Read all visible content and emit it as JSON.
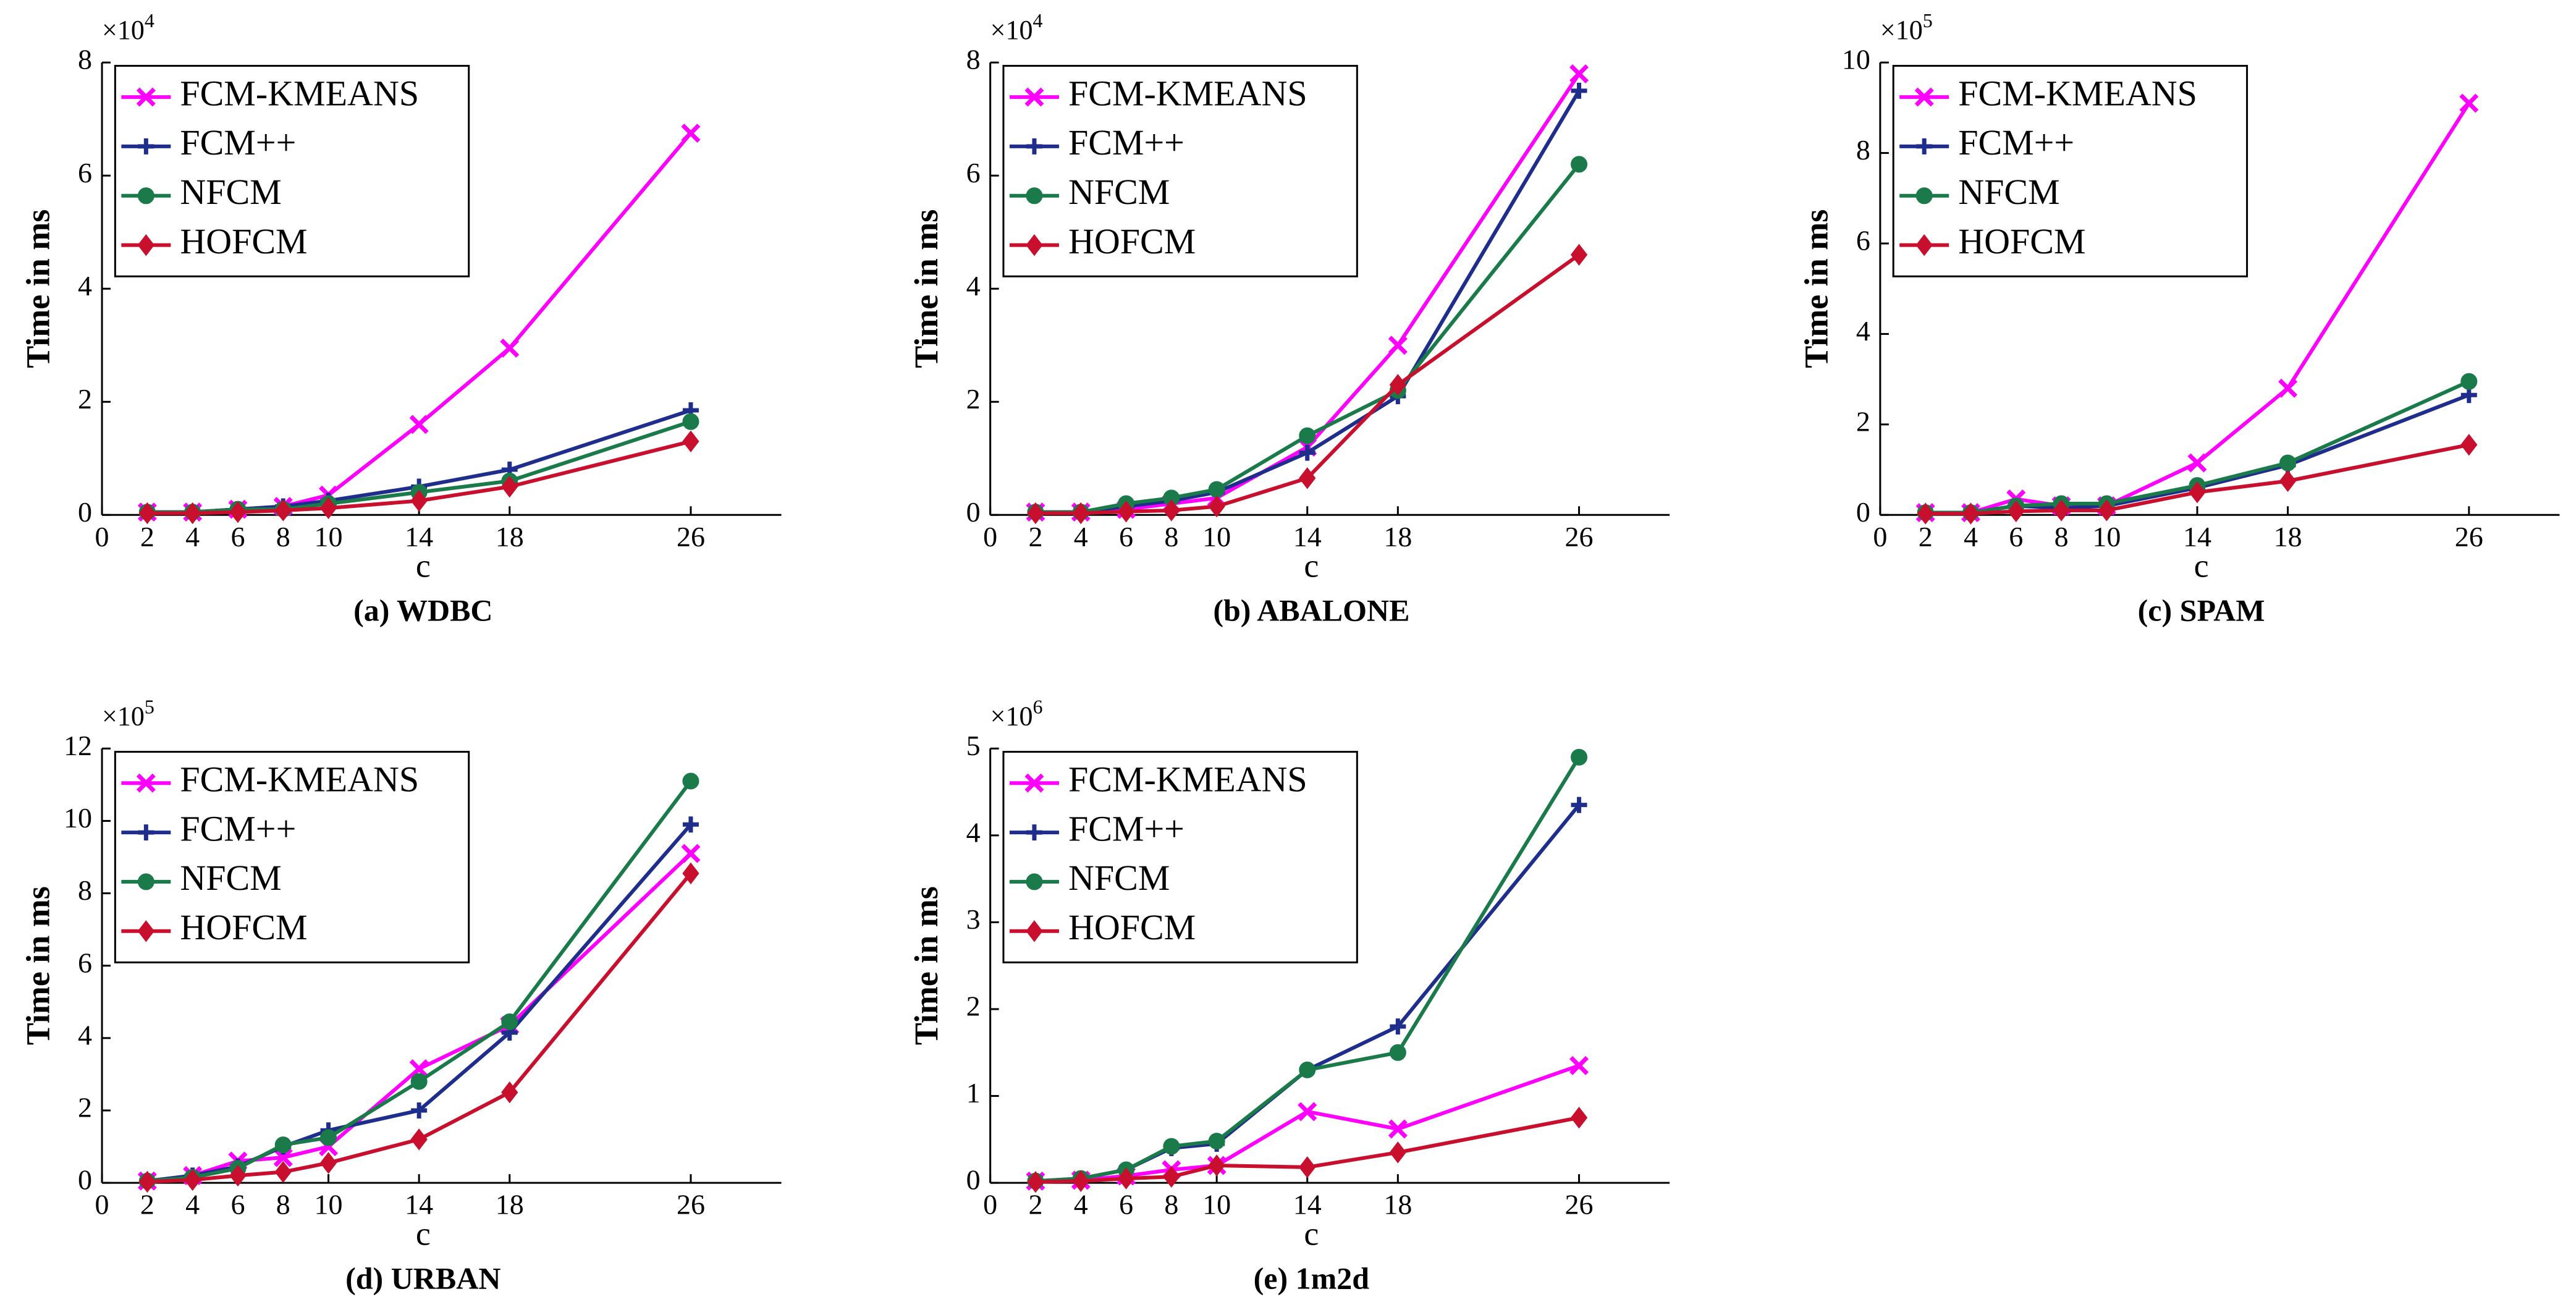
{
  "chart_data": [
    {
      "type": "line",
      "title": "(a) WDBC",
      "xlabel": "c",
      "ylabel": "Time in ms",
      "y_multiplier": {
        "base": "×10",
        "exponent": "4"
      },
      "x": [
        2,
        4,
        6,
        8,
        10,
        14,
        18,
        26
      ],
      "xlim": [
        0,
        30
      ],
      "xticks": [
        0,
        2,
        4,
        6,
        8,
        10,
        14,
        18,
        26
      ],
      "ylim": [
        0,
        8
      ],
      "yticks": [
        0,
        2,
        4,
        6,
        8
      ],
      "legend": "upper left",
      "series": [
        {
          "name": "FCM-KMEANS",
          "color": "#ff00ff",
          "marker": "x",
          "values": [
            0.05,
            0.05,
            0.1,
            0.15,
            0.35,
            1.6,
            2.95,
            6.75
          ]
        },
        {
          "name": "FCM++",
          "color": "#1f2e8c",
          "marker": "plus",
          "values": [
            0.05,
            0.05,
            0.1,
            0.15,
            0.25,
            0.5,
            0.8,
            1.85
          ]
        },
        {
          "name": "NFCM",
          "color": "#1a7a4a",
          "marker": "circle",
          "values": [
            0.05,
            0.05,
            0.1,
            0.1,
            0.2,
            0.4,
            0.6,
            1.65
          ]
        },
        {
          "name": "HOFCM",
          "color": "#c8102e",
          "marker": "diamond",
          "values": [
            0.03,
            0.03,
            0.05,
            0.08,
            0.12,
            0.25,
            0.5,
            1.3
          ]
        }
      ]
    },
    {
      "type": "line",
      "title": "(b) ABALONE",
      "xlabel": "c",
      "ylabel": "Time in ms",
      "y_multiplier": {
        "base": "×10",
        "exponent": "4"
      },
      "x": [
        2,
        4,
        6,
        8,
        10,
        14,
        18,
        26
      ],
      "xlim": [
        0,
        30
      ],
      "xticks": [
        0,
        2,
        4,
        6,
        8,
        10,
        14,
        18,
        26
      ],
      "ylim": [
        0,
        8
      ],
      "yticks": [
        0,
        2,
        4,
        6,
        8
      ],
      "legend": "upper left",
      "series": [
        {
          "name": "FCM-KMEANS",
          "color": "#ff00ff",
          "marker": "x",
          "values": [
            0.05,
            0.05,
            0.1,
            0.2,
            0.3,
            1.2,
            3.0,
            7.8
          ]
        },
        {
          "name": "FCM++",
          "color": "#1f2e8c",
          "marker": "plus",
          "values": [
            0.05,
            0.05,
            0.15,
            0.25,
            0.4,
            1.1,
            2.1,
            7.5
          ]
        },
        {
          "name": "NFCM",
          "color": "#1a7a4a",
          "marker": "circle",
          "values": [
            0.05,
            0.05,
            0.2,
            0.3,
            0.45,
            1.4,
            2.2,
            6.2
          ]
        },
        {
          "name": "HOFCM",
          "color": "#c8102e",
          "marker": "diamond",
          "values": [
            0.03,
            0.03,
            0.06,
            0.08,
            0.15,
            0.65,
            2.3,
            4.6
          ]
        }
      ]
    },
    {
      "type": "line",
      "title": "(c) SPAM",
      "xlabel": "c",
      "ylabel": "Time in ms",
      "y_multiplier": {
        "base": "×10",
        "exponent": "5"
      },
      "x": [
        2,
        4,
        6,
        8,
        10,
        14,
        18,
        26
      ],
      "xlim": [
        0,
        30
      ],
      "xticks": [
        0,
        2,
        4,
        6,
        8,
        10,
        14,
        18,
        26
      ],
      "ylim": [
        0,
        10
      ],
      "yticks": [
        0,
        2,
        4,
        6,
        8,
        10
      ],
      "legend": "upper left",
      "series": [
        {
          "name": "FCM-KMEANS",
          "color": "#ff00ff",
          "marker": "x",
          "values": [
            0.05,
            0.05,
            0.35,
            0.2,
            0.2,
            1.15,
            2.8,
            9.1
          ]
        },
        {
          "name": "FCM++",
          "color": "#1f2e8c",
          "marker": "plus",
          "values": [
            0.05,
            0.05,
            0.2,
            0.15,
            0.2,
            0.6,
            1.1,
            2.65
          ]
        },
        {
          "name": "NFCM",
          "color": "#1a7a4a",
          "marker": "circle",
          "values": [
            0.05,
            0.05,
            0.2,
            0.25,
            0.25,
            0.65,
            1.15,
            2.95
          ]
        },
        {
          "name": "HOFCM",
          "color": "#c8102e",
          "marker": "diamond",
          "values": [
            0.03,
            0.03,
            0.08,
            0.1,
            0.1,
            0.5,
            0.75,
            1.55
          ]
        }
      ]
    },
    {
      "type": "line",
      "title": "(d) URBAN",
      "xlabel": "c",
      "ylabel": "Time in ms",
      "y_multiplier": {
        "base": "×10",
        "exponent": "5"
      },
      "x": [
        2,
        4,
        6,
        8,
        10,
        14,
        18,
        26
      ],
      "xlim": [
        0,
        30
      ],
      "xticks": [
        0,
        2,
        4,
        6,
        8,
        10,
        14,
        18,
        26
      ],
      "ylim": [
        0,
        12
      ],
      "yticks": [
        0,
        2,
        4,
        6,
        8,
        10,
        12
      ],
      "legend": "upper left",
      "series": [
        {
          "name": "FCM-KMEANS",
          "color": "#ff00ff",
          "marker": "x",
          "values": [
            0.05,
            0.2,
            0.6,
            0.7,
            1.0,
            3.15,
            4.35,
            9.1
          ]
        },
        {
          "name": "FCM++",
          "color": "#1f2e8c",
          "marker": "plus",
          "values": [
            0.05,
            0.2,
            0.45,
            1.0,
            1.45,
            2.0,
            4.15,
            9.9
          ]
        },
        {
          "name": "NFCM",
          "color": "#1a7a4a",
          "marker": "circle",
          "values": [
            0.05,
            0.15,
            0.4,
            1.05,
            1.25,
            2.8,
            4.45,
            11.1
          ]
        },
        {
          "name": "HOFCM",
          "color": "#c8102e",
          "marker": "diamond",
          "values": [
            0.03,
            0.08,
            0.2,
            0.3,
            0.55,
            1.2,
            2.5,
            8.55
          ]
        }
      ]
    },
    {
      "type": "line",
      "title": "(e) 1m2d",
      "xlabel": "c",
      "ylabel": "Time in ms",
      "y_multiplier": {
        "base": "×10",
        "exponent": "6"
      },
      "x": [
        2,
        4,
        6,
        8,
        10,
        14,
        18,
        26
      ],
      "xlim": [
        0,
        30
      ],
      "xticks": [
        0,
        2,
        4,
        6,
        8,
        10,
        14,
        18,
        26
      ],
      "ylim": [
        0,
        5
      ],
      "yticks": [
        0,
        1,
        2,
        3,
        4,
        5
      ],
      "legend": "upper left",
      "series": [
        {
          "name": "FCM-KMEANS",
          "color": "#ff00ff",
          "marker": "x",
          "values": [
            0.02,
            0.03,
            0.08,
            0.15,
            0.2,
            0.82,
            0.62,
            1.35
          ]
        },
        {
          "name": "FCM++",
          "color": "#1f2e8c",
          "marker": "plus",
          "values": [
            0.02,
            0.05,
            0.15,
            0.4,
            0.45,
            1.3,
            1.8,
            4.35
          ]
        },
        {
          "name": "NFCM",
          "color": "#1a7a4a",
          "marker": "circle",
          "values": [
            0.02,
            0.05,
            0.15,
            0.42,
            0.48,
            1.3,
            1.5,
            4.9
          ]
        },
        {
          "name": "HOFCM",
          "color": "#c8102e",
          "marker": "diamond",
          "values": [
            0.01,
            0.02,
            0.05,
            0.07,
            0.2,
            0.18,
            0.35,
            0.75
          ]
        }
      ]
    }
  ]
}
